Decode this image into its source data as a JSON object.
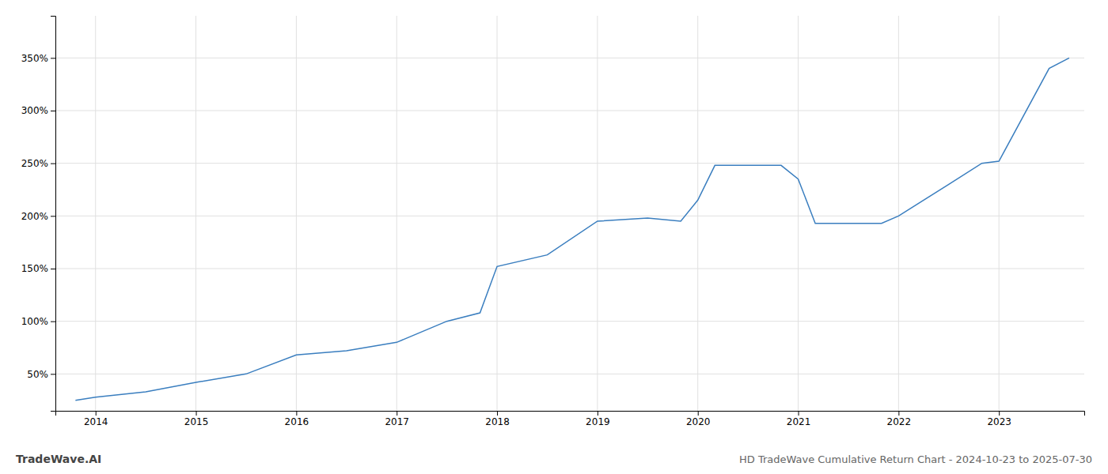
{
  "chart_data": {
    "type": "line",
    "title": "HD TradeWave Cumulative Return Chart - 2024-10-23 to 2025-07-30",
    "annotations": [
      "TradeWave.AI"
    ],
    "x": [
      2013.8,
      2014.0,
      2014.5,
      2015.0,
      2015.5,
      2016.0,
      2016.5,
      2017.0,
      2017.5,
      2017.83,
      2018.0,
      2018.5,
      2019.0,
      2019.5,
      2019.83,
      2020.0,
      2020.17,
      2020.83,
      2021.0,
      2021.17,
      2021.83,
      2022.0,
      2022.5,
      2022.83,
      2023.0,
      2023.5,
      2023.7
    ],
    "values": [
      25,
      28,
      33,
      42,
      50,
      68,
      72,
      80,
      100,
      108,
      152,
      163,
      195,
      198,
      195,
      215,
      248,
      248,
      235,
      193,
      193,
      200,
      230,
      250,
      252,
      340,
      350
    ],
    "color": "#3a7ebf",
    "xlim": [
      2013.6,
      2023.85
    ],
    "ylim": [
      15,
      390
    ],
    "xticks": [
      2014,
      2015,
      2016,
      2017,
      2018,
      2019,
      2020,
      2021,
      2022,
      2023
    ],
    "yticks": [
      {
        "value": 50,
        "label": "50%"
      },
      {
        "value": 100,
        "label": "100%"
      },
      {
        "value": 150,
        "label": "150%"
      },
      {
        "value": 200,
        "label": "200%"
      },
      {
        "value": 250,
        "label": "250%"
      },
      {
        "value": 300,
        "label": "300%"
      },
      {
        "value": 350,
        "label": "350%"
      }
    ],
    "grid": true
  }
}
